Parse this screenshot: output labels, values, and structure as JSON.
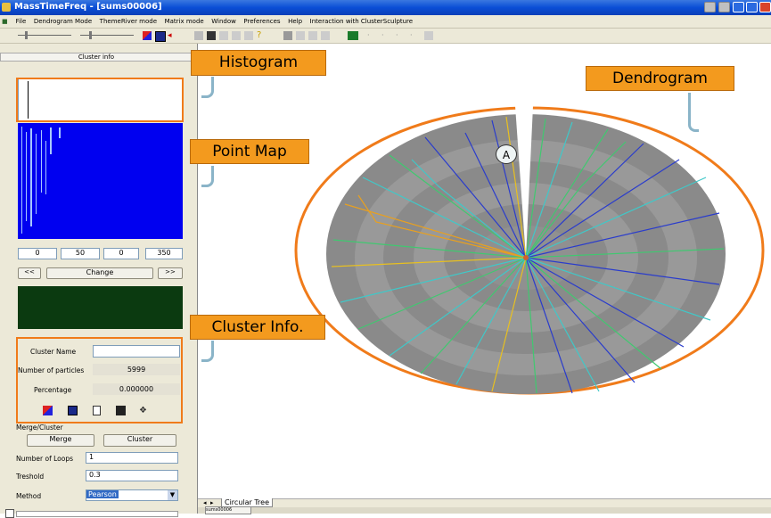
{
  "window": {
    "title": "MassTimeFreq - [sums00006]"
  },
  "menu": [
    "File",
    "Dendrogram Mode",
    "ThemeRiver mode",
    "Matrix mode",
    "Window",
    "Preferences",
    "Help",
    "Interaction with ClusterSculpture"
  ],
  "panel": {
    "header": "Cluster info",
    "range_fields": [
      "0",
      "50",
      "0",
      "350"
    ],
    "change_label": "Change",
    "prev_label": "<<",
    "next_label": ">>",
    "cluster_name_label": "Cluster Name",
    "cluster_name_value": "",
    "num_particles_label": "Number of particles",
    "num_particles_value": "5999",
    "percentage_label": "Percentage",
    "percentage_value": "0.000000",
    "merge_group_label": "Merge/Cluster",
    "merge_label": "Merge",
    "cluster_label": "Cluster",
    "loops_label": "Number of Loops",
    "loops_value": "1",
    "threshold_label": "Treshold",
    "threshold_value": "0.3",
    "method_label": "Method",
    "method_value": "Pearson"
  },
  "tabs": {
    "circular_tree": "Circular Tree"
  },
  "statusbar": {
    "doc_tab": "sums00006"
  },
  "callouts": {
    "histogram": "Histogram",
    "point_map": "Point Map",
    "cluster_info": "Cluster Info.",
    "dendrogram": "Dendrogram"
  },
  "marker": "A",
  "colors": {
    "point_map_bg": "#0000f0",
    "cluster_view_bg": "#0b3a10",
    "callout": "#f39a1e",
    "highlight_ring": "#f07b1a",
    "dendrogram_disc": "#8a8a8a"
  }
}
